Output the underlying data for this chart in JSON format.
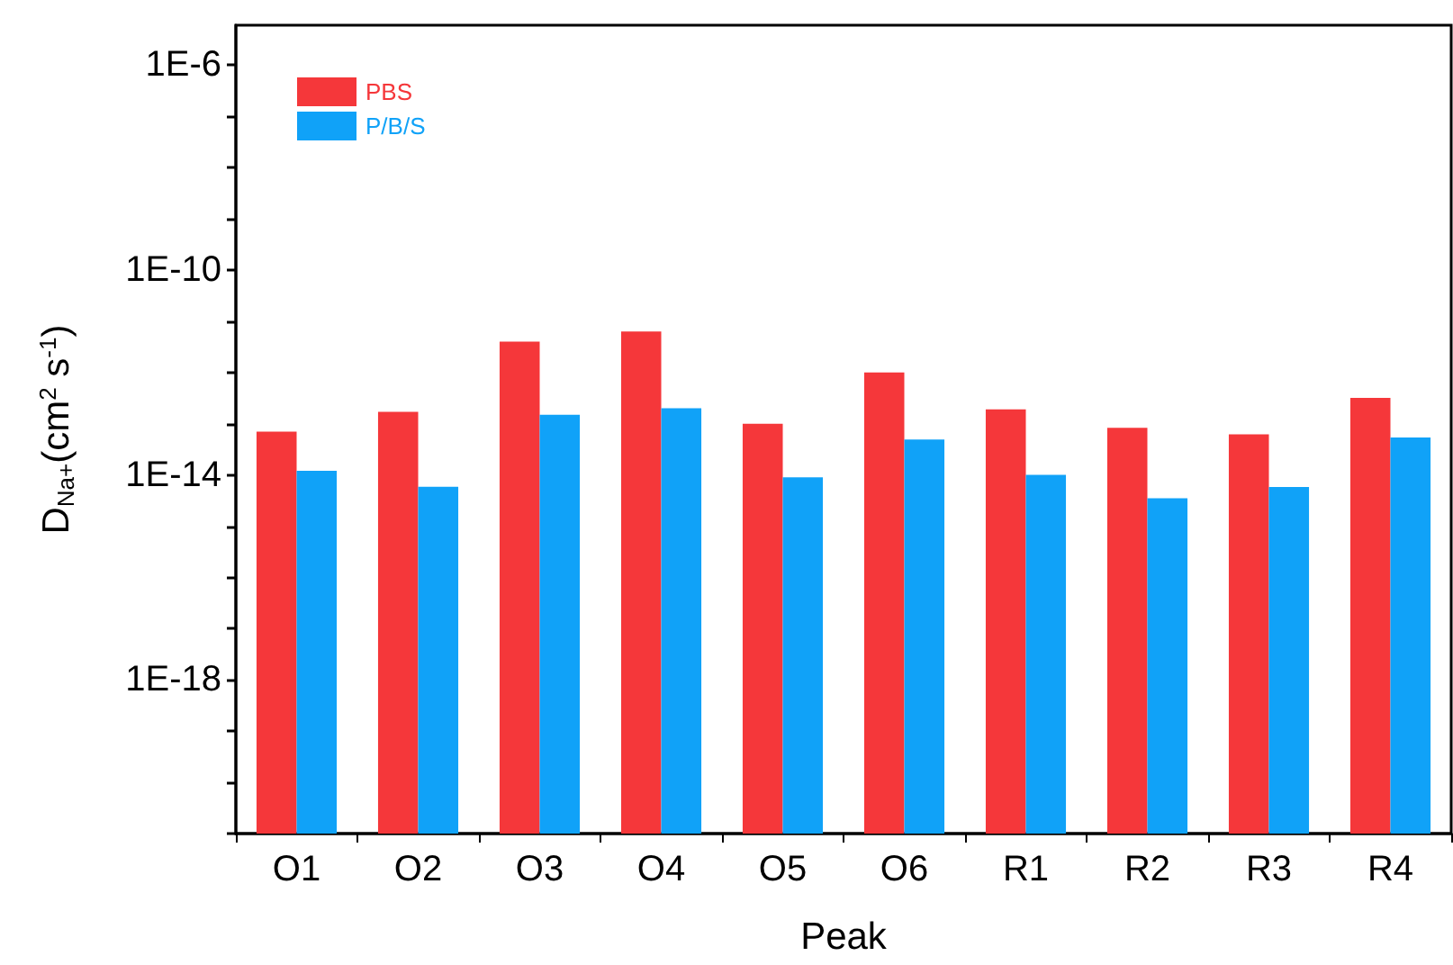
{
  "chart_data": {
    "type": "bar",
    "xlabel": "Peak",
    "ylabel": "D$_{Na+}$(cm$^{2}$ s$^{-1}$)",
    "categories": [
      "O1",
      "O2",
      "O3",
      "O4",
      "O5",
      "O6",
      "R1",
      "R2",
      "R3",
      "R4"
    ],
    "series": [
      {
        "name": "PBS",
        "color": "#f5373a",
        "values": [
          7e-14,
          1.7e-13,
          4e-12,
          6.3e-12,
          1e-13,
          1e-12,
          1.9e-13,
          8.3e-14,
          6.2e-14,
          3.2e-13
        ]
      },
      {
        "name": "P/B/S",
        "color": "#10a2f8",
        "values": [
          1.2e-14,
          5.9e-15,
          1.5e-13,
          2e-13,
          9e-15,
          4.9e-14,
          1e-14,
          3.5e-15,
          5.8e-15,
          5.4e-14
        ]
      }
    ],
    "log": "y",
    "ylim": [
      1e-21,
      6e-06
    ],
    "yticks": [
      {
        "value": 1e-21,
        "label": null
      },
      {
        "value": 1e-20,
        "label": null
      },
      {
        "value": 1e-19,
        "label": null
      },
      {
        "value": 1e-18,
        "label": "1E-18"
      },
      {
        "value": 1e-17,
        "label": null
      },
      {
        "value": 1e-16,
        "label": null
      },
      {
        "value": 1e-15,
        "label": null
      },
      {
        "value": 1e-14,
        "label": "1E-14"
      },
      {
        "value": 1e-13,
        "label": null
      },
      {
        "value": 1e-12,
        "label": null
      },
      {
        "value": 1e-11,
        "label": null
      },
      {
        "value": 1e-10,
        "label": "1E-10"
      },
      {
        "value": 1e-09,
        "label": null
      },
      {
        "value": 1e-08,
        "label": null
      },
      {
        "value": 1e-07,
        "label": null
      },
      {
        "value": 1e-06,
        "label": "1E-6"
      }
    ],
    "legend": "top left",
    "grid": false
  }
}
